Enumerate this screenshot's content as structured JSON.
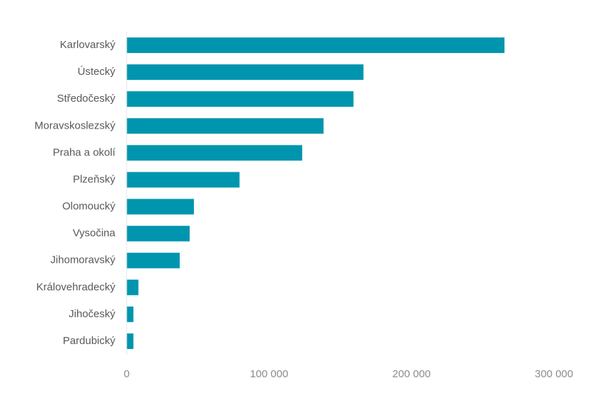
{
  "chart_data": {
    "type": "bar",
    "orientation": "horizontal",
    "title": "",
    "xlabel": "",
    "ylabel": "",
    "categories": [
      "Karlovarský",
      "Ústecký",
      "Středočeský",
      "Moravskoslezský",
      "Praha a okolí",
      "Plzeňský",
      "Olomoucký",
      "Vysočina",
      "Jihomoravský",
      "Královehradecký",
      "Jihočeský",
      "Pardubický"
    ],
    "values": [
      265000,
      166000,
      159000,
      138000,
      123000,
      79000,
      47000,
      44000,
      37000,
      8000,
      4500,
      4500
    ],
    "xlim": [
      0,
      300000
    ],
    "ticks": [
      0,
      100000,
      200000,
      300000
    ],
    "tick_labels": [
      "0",
      "100 000",
      "200 000",
      "300 000"
    ],
    "grid": false,
    "legend": "none",
    "bar_color": "#0095AE",
    "axis_color": "#e6e6e6"
  }
}
